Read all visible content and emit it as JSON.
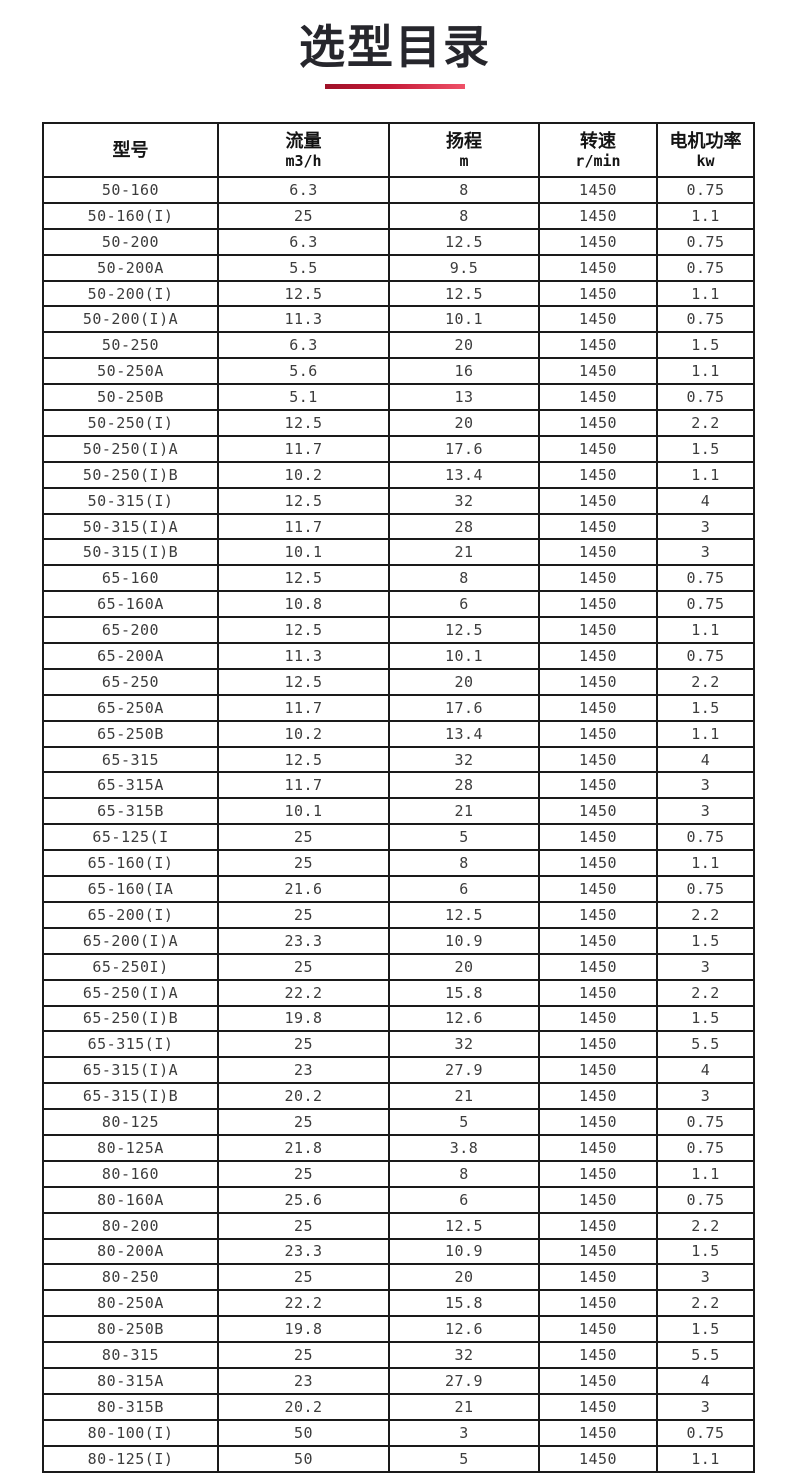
{
  "page": {
    "title": "选型目录"
  },
  "colors": {
    "accent_gradient_start": "#9e1128",
    "accent_gradient_end": "#ef5168",
    "table_border": "#1a1a1a",
    "cell_text": "#3c3c3c",
    "title_text": "#26262c"
  },
  "table": {
    "columns": [
      {
        "key": "model",
        "label": "型号",
        "unit": ""
      },
      {
        "key": "flow",
        "label": "流量",
        "unit": "m3/h"
      },
      {
        "key": "head",
        "label": "扬程",
        "unit": "m"
      },
      {
        "key": "speed",
        "label": "转速",
        "unit": "r/min"
      },
      {
        "key": "power",
        "label": "电机功率",
        "unit": "kw"
      }
    ],
    "rows": [
      [
        "50-160",
        "6.3",
        "8",
        "1450",
        "0.75"
      ],
      [
        "50-160(I)",
        "25",
        "8",
        "1450",
        "1.1"
      ],
      [
        "50-200",
        "6.3",
        "12.5",
        "1450",
        "0.75"
      ],
      [
        "50-200A",
        "5.5",
        "9.5",
        "1450",
        "0.75"
      ],
      [
        "50-200(I)",
        "12.5",
        "12.5",
        "1450",
        "1.1"
      ],
      [
        "50-200(I)A",
        "11.3",
        "10.1",
        "1450",
        "0.75"
      ],
      [
        "50-250",
        "6.3",
        "20",
        "1450",
        "1.5"
      ],
      [
        "50-250A",
        "5.6",
        "16",
        "1450",
        "1.1"
      ],
      [
        "50-250B",
        "5.1",
        "13",
        "1450",
        "0.75"
      ],
      [
        "50-250(I)",
        "12.5",
        "20",
        "1450",
        "2.2"
      ],
      [
        "50-250(I)A",
        "11.7",
        "17.6",
        "1450",
        "1.5"
      ],
      [
        "50-250(I)B",
        "10.2",
        "13.4",
        "1450",
        "1.1"
      ],
      [
        "50-315(I)",
        "12.5",
        "32",
        "1450",
        "4"
      ],
      [
        "50-315(I)A",
        "11.7",
        "28",
        "1450",
        "3"
      ],
      [
        "50-315(I)B",
        "10.1",
        "21",
        "1450",
        "3"
      ],
      [
        "65-160",
        "12.5",
        "8",
        "1450",
        "0.75"
      ],
      [
        "65-160A",
        "10.8",
        "6",
        "1450",
        "0.75"
      ],
      [
        "65-200",
        "12.5",
        "12.5",
        "1450",
        "1.1"
      ],
      [
        "65-200A",
        "11.3",
        "10.1",
        "1450",
        "0.75"
      ],
      [
        "65-250",
        "12.5",
        "20",
        "1450",
        "2.2"
      ],
      [
        "65-250A",
        "11.7",
        "17.6",
        "1450",
        "1.5"
      ],
      [
        "65-250B",
        "10.2",
        "13.4",
        "1450",
        "1.1"
      ],
      [
        "65-315",
        "12.5",
        "32",
        "1450",
        "4"
      ],
      [
        "65-315A",
        "11.7",
        "28",
        "1450",
        "3"
      ],
      [
        "65-315B",
        "10.1",
        "21",
        "1450",
        "3"
      ],
      [
        "65-125(I",
        "25",
        "5",
        "1450",
        "0.75"
      ],
      [
        "65-160(I)",
        "25",
        "8",
        "1450",
        "1.1"
      ],
      [
        "65-160(IA",
        "21.6",
        "6",
        "1450",
        "0.75"
      ],
      [
        "65-200(I)",
        "25",
        "12.5",
        "1450",
        "2.2"
      ],
      [
        "65-200(I)A",
        "23.3",
        "10.9",
        "1450",
        "1.5"
      ],
      [
        "65-250I)",
        "25",
        "20",
        "1450",
        "3"
      ],
      [
        "65-250(I)A",
        "22.2",
        "15.8",
        "1450",
        "2.2"
      ],
      [
        "65-250(I)B",
        "19.8",
        "12.6",
        "1450",
        "1.5"
      ],
      [
        "65-315(I)",
        "25",
        "32",
        "1450",
        "5.5"
      ],
      [
        "65-315(I)A",
        "23",
        "27.9",
        "1450",
        "4"
      ],
      [
        "65-315(I)B",
        "20.2",
        "21",
        "1450",
        "3"
      ],
      [
        "80-125",
        "25",
        "5",
        "1450",
        "0.75"
      ],
      [
        "80-125A",
        "21.8",
        "3.8",
        "1450",
        "0.75"
      ],
      [
        "80-160",
        "25",
        "8",
        "1450",
        "1.1"
      ],
      [
        "80-160A",
        "25.6",
        "6",
        "1450",
        "0.75"
      ],
      [
        "80-200",
        "25",
        "12.5",
        "1450",
        "2.2"
      ],
      [
        "80-200A",
        "23.3",
        "10.9",
        "1450",
        "1.5"
      ],
      [
        "80-250",
        "25",
        "20",
        "1450",
        "3"
      ],
      [
        "80-250A",
        "22.2",
        "15.8",
        "1450",
        "2.2"
      ],
      [
        "80-250B",
        "19.8",
        "12.6",
        "1450",
        "1.5"
      ],
      [
        "80-315",
        "25",
        "32",
        "1450",
        "5.5"
      ],
      [
        "80-315A",
        "23",
        "27.9",
        "1450",
        "4"
      ],
      [
        "80-315B",
        "20.2",
        "21",
        "1450",
        "3"
      ],
      [
        "80-100(I)",
        "50",
        "3",
        "1450",
        "0.75"
      ],
      [
        "80-125(I)",
        "50",
        "5",
        "1450",
        "1.1"
      ]
    ]
  }
}
